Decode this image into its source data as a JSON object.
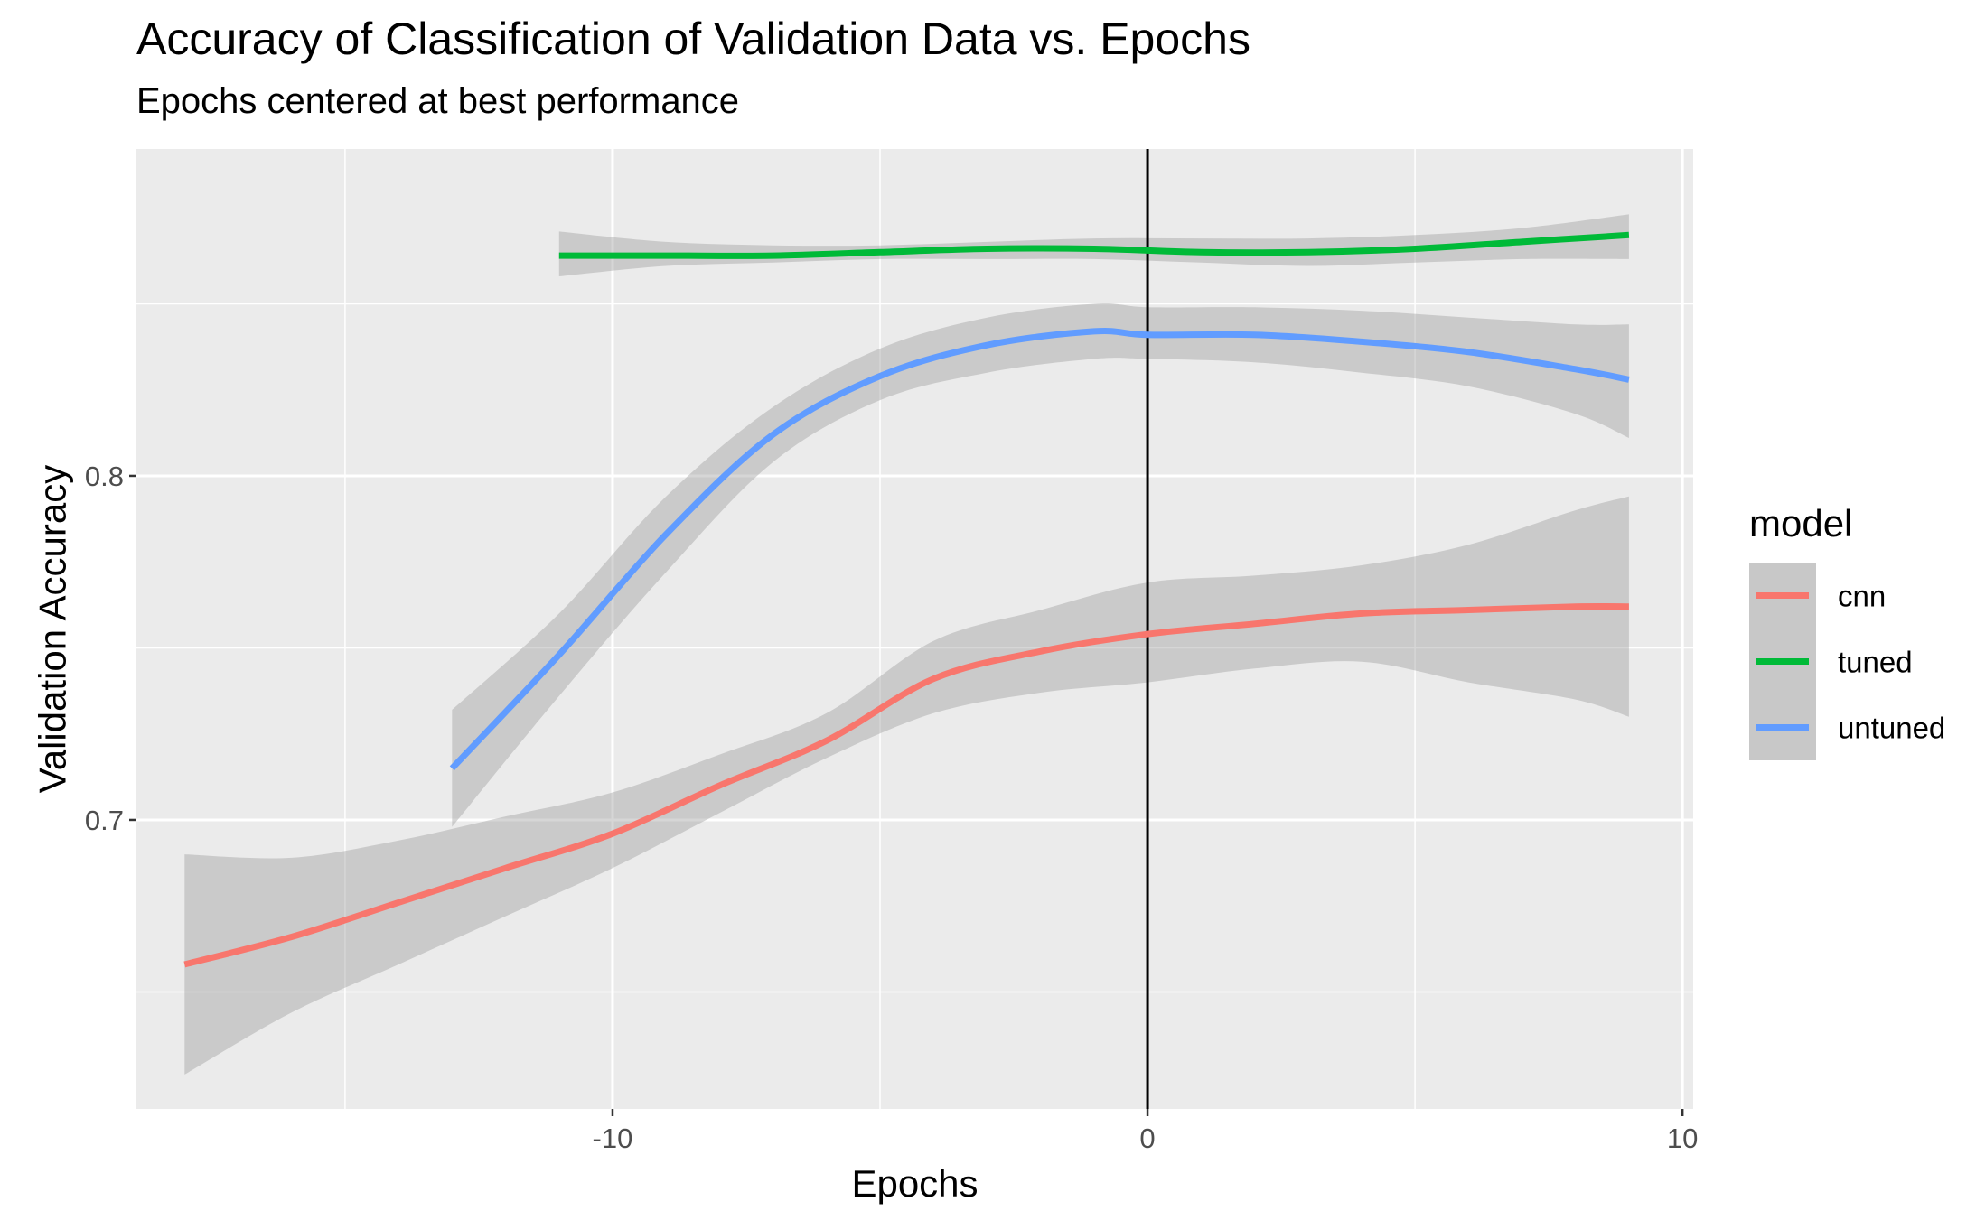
{
  "chart_data": {
    "type": "line",
    "title": "Accuracy of Classification of Validation Data vs. Epochs",
    "subtitle": "Epochs centered at best performance",
    "xlabel": "Epochs",
    "ylabel": "Validation Accuracy",
    "xlim": [
      -18.9,
      10.2
    ],
    "ylim": [
      0.616,
      0.895
    ],
    "x_ticks": [
      -10,
      0,
      10
    ],
    "x_tick_labels": [
      "-10",
      "0",
      "10"
    ],
    "y_ticks": [
      0.7,
      0.8
    ],
    "y_tick_labels": [
      "0.7",
      "0.8"
    ],
    "grid": true,
    "reference_line": {
      "x": 0
    },
    "legend": {
      "title": "model",
      "position": "right"
    },
    "series": [
      {
        "name": "cnn",
        "color": "#F8766D",
        "x": [
          -18,
          -16,
          -14,
          -12,
          -10,
          -8,
          -6,
          -4,
          -2,
          0,
          2,
          4,
          6,
          8,
          9
        ],
        "y": [
          0.658,
          0.666,
          0.676,
          0.686,
          0.696,
          0.71,
          0.723,
          0.741,
          0.749,
          0.754,
          0.757,
          0.76,
          0.761,
          0.762,
          0.762
        ],
        "lower": [
          0.626,
          0.644,
          0.658,
          0.672,
          0.686,
          0.702,
          0.718,
          0.731,
          0.737,
          0.74,
          0.744,
          0.746,
          0.74,
          0.735,
          0.73
        ],
        "upper": [
          0.69,
          0.689,
          0.694,
          0.701,
          0.708,
          0.719,
          0.731,
          0.752,
          0.761,
          0.769,
          0.771,
          0.774,
          0.78,
          0.79,
          0.794
        ]
      },
      {
        "name": "tuned",
        "color": "#00BA38",
        "x": [
          -11,
          -9,
          -7,
          -5,
          -3,
          -1,
          1,
          3,
          5,
          7,
          9
        ],
        "y": [
          0.864,
          0.864,
          0.864,
          0.865,
          0.866,
          0.866,
          0.865,
          0.865,
          0.866,
          0.868,
          0.87
        ],
        "lower": [
          0.858,
          0.861,
          0.862,
          0.863,
          0.863,
          0.863,
          0.862,
          0.861,
          0.862,
          0.863,
          0.863
        ],
        "upper": [
          0.871,
          0.868,
          0.867,
          0.867,
          0.868,
          0.869,
          0.869,
          0.869,
          0.87,
          0.872,
          0.876
        ]
      },
      {
        "name": "untuned",
        "color": "#619CFF",
        "x": [
          -13,
          -11,
          -9,
          -7,
          -5,
          -3,
          -1,
          0,
          2,
          4,
          6,
          8,
          9
        ],
        "y": [
          0.715,
          0.748,
          0.783,
          0.812,
          0.829,
          0.838,
          0.842,
          0.841,
          0.841,
          0.839,
          0.836,
          0.831,
          0.828
        ],
        "lower": [
          0.698,
          0.736,
          0.772,
          0.804,
          0.822,
          0.83,
          0.834,
          0.834,
          0.833,
          0.83,
          0.826,
          0.818,
          0.811
        ],
        "upper": [
          0.732,
          0.76,
          0.794,
          0.82,
          0.837,
          0.846,
          0.85,
          0.849,
          0.849,
          0.848,
          0.846,
          0.844,
          0.844
        ]
      }
    ]
  }
}
